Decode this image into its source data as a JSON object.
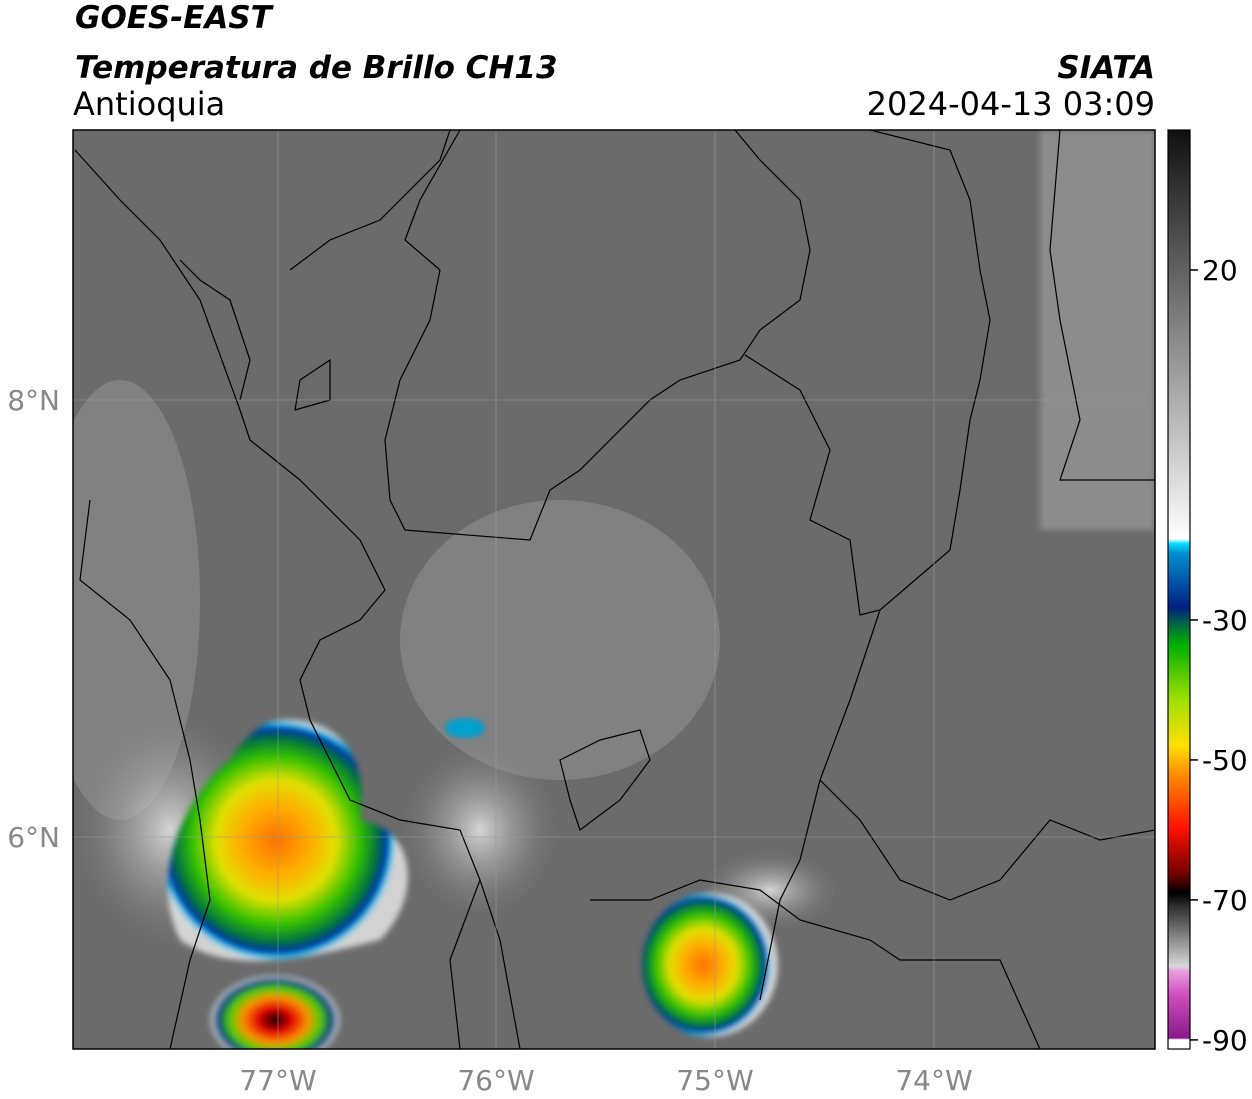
{
  "header": {
    "satellite": "GOES-EAST",
    "product": "Temperatura de Brillo CH13",
    "region": "Antioquia",
    "agency": "SIATA",
    "datetime": "2024-04-13 03:09"
  },
  "map": {
    "lat_labels": [
      "8°N",
      "6°N"
    ],
    "lon_labels": [
      "77°W",
      "76°W",
      "75°W",
      "74°W"
    ]
  },
  "colorbar": {
    "range": [
      -91.3,
      40
    ],
    "ticks": [
      20,
      -30,
      -50,
      -70,
      -90
    ]
  }
}
